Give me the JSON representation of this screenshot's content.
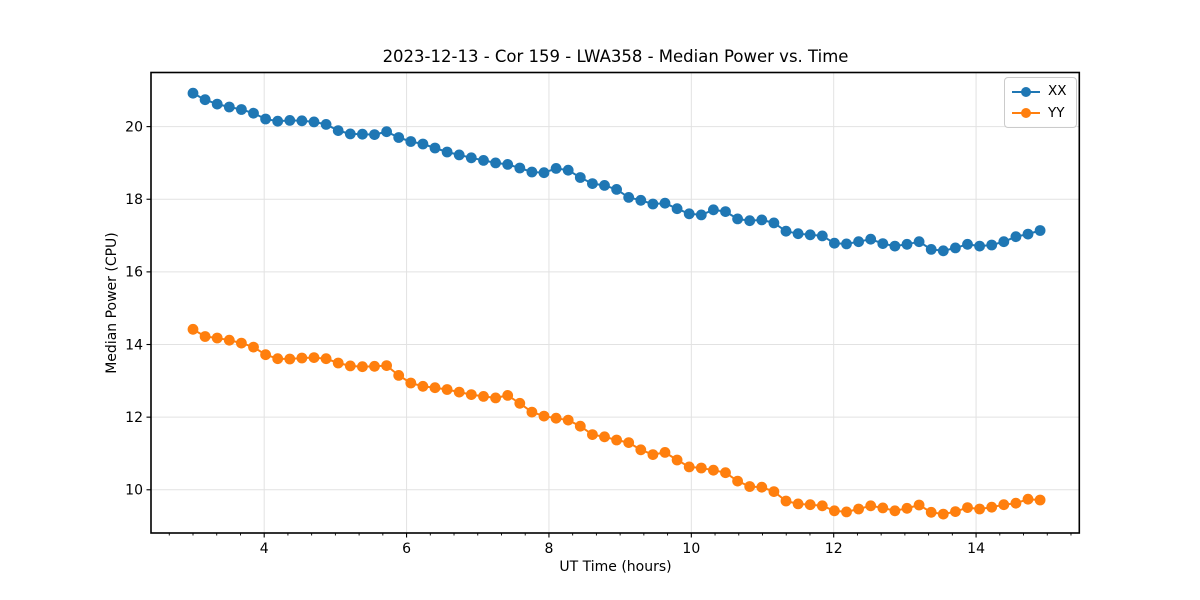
{
  "chart_data": {
    "type": "line",
    "title": "2023-12-13 - Cor 159 - LWA358 - Median Power vs. Time",
    "xlabel": "UT Time (hours)",
    "ylabel": "Median Power (CPU)",
    "xlim": [
      2.41,
      15.45
    ],
    "ylim": [
      8.81,
      21.49
    ],
    "xticks": [
      4,
      6,
      8,
      10,
      12,
      14
    ],
    "yticks": [
      10,
      12,
      14,
      16,
      18,
      20
    ],
    "x_minor_tick_step": 0.33333,
    "grid": true,
    "grid_color": "#e2e2e2",
    "background": "#ffffff",
    "legend": {
      "position": "upper right",
      "entries": [
        "XX",
        "YY"
      ]
    },
    "marker": "circle",
    "x": [
      3.0,
      3.17,
      3.34,
      3.51,
      3.68,
      3.85,
      4.02,
      4.19,
      4.36,
      4.53,
      4.7,
      4.87,
      5.04,
      5.21,
      5.38,
      5.55,
      5.72,
      5.89,
      6.06,
      6.23,
      6.4,
      6.57,
      6.74,
      6.91,
      7.08,
      7.25,
      7.42,
      7.59,
      7.76,
      7.93,
      8.1,
      8.27,
      8.44,
      8.61,
      8.78,
      8.95,
      9.12,
      9.29,
      9.46,
      9.63,
      9.8,
      9.97,
      10.14,
      10.31,
      10.48,
      10.65,
      10.82,
      10.99,
      11.16,
      11.33,
      11.5,
      11.67,
      11.84,
      12.01,
      12.18,
      12.35,
      12.52,
      12.69,
      12.86,
      13.03,
      13.2,
      13.37,
      13.54,
      13.71,
      13.88,
      14.05,
      14.22,
      14.39,
      14.56,
      14.73,
      14.9
    ],
    "series": [
      {
        "name": "XX",
        "color": "#1f77b4",
        "values": [
          20.92,
          20.74,
          20.62,
          20.54,
          20.47,
          20.37,
          20.21,
          20.15,
          20.17,
          20.16,
          20.13,
          20.06,
          19.89,
          19.8,
          19.79,
          19.78,
          19.86,
          19.7,
          19.59,
          19.52,
          19.41,
          19.3,
          19.22,
          19.14,
          19.07,
          19.0,
          18.96,
          18.86,
          18.75,
          18.73,
          18.85,
          18.8,
          18.6,
          18.43,
          18.38,
          18.27,
          18.05,
          17.97,
          17.87,
          17.89,
          17.74,
          17.6,
          17.57,
          17.71,
          17.66,
          17.46,
          17.41,
          17.43,
          17.35,
          17.12,
          17.05,
          17.02,
          16.99,
          16.79,
          16.77,
          16.83,
          16.9,
          16.78,
          16.71,
          16.76,
          16.83,
          16.62,
          16.58,
          16.66,
          16.76,
          16.71,
          16.74,
          16.83,
          16.97,
          17.04,
          17.14
        ]
      },
      {
        "name": "YY",
        "color": "#ff7f0e",
        "values": [
          14.42,
          14.22,
          14.18,
          14.12,
          14.04,
          13.93,
          13.72,
          13.61,
          13.6,
          13.63,
          13.64,
          13.61,
          13.49,
          13.41,
          13.39,
          13.4,
          13.42,
          13.15,
          12.94,
          12.85,
          12.81,
          12.76,
          12.69,
          12.62,
          12.57,
          12.53,
          12.6,
          12.38,
          12.14,
          12.03,
          11.97,
          11.92,
          11.75,
          11.52,
          11.46,
          11.37,
          11.3,
          11.1,
          10.97,
          11.03,
          10.82,
          10.63,
          10.6,
          10.54,
          10.47,
          10.24,
          10.09,
          10.07,
          9.95,
          9.69,
          9.61,
          9.59,
          9.56,
          9.42,
          9.39,
          9.47,
          9.56,
          9.5,
          9.42,
          9.49,
          9.58,
          9.38,
          9.33,
          9.4,
          9.51,
          9.47,
          9.52,
          9.59,
          9.63,
          9.74,
          9.72
        ]
      }
    ]
  }
}
